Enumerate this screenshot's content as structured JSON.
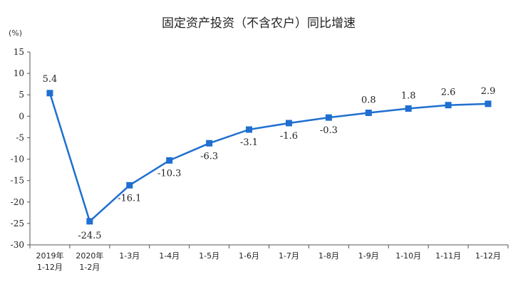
{
  "chart_data": {
    "type": "line",
    "title": "固定资产投资（不含农户）同比增速",
    "ylabel": "(%)",
    "xlabel": "",
    "ylim": [
      -30,
      15
    ],
    "yticks": [
      15,
      10,
      5,
      0,
      -5,
      -10,
      -15,
      -20,
      -25,
      -30
    ],
    "grid": false,
    "legend": "none",
    "categories": [
      [
        "2019年",
        "1-12月"
      ],
      [
        "2020年",
        "1-2月"
      ],
      [
        "1-3月"
      ],
      [
        "1-4月"
      ],
      [
        "1-5月"
      ],
      [
        "1-6月"
      ],
      [
        "1-7月"
      ],
      [
        "1-8月"
      ],
      [
        "1-9月"
      ],
      [
        "1-10月"
      ],
      [
        "1-11月"
      ],
      [
        "1-12月"
      ]
    ],
    "series": [
      {
        "values": [
          5.4,
          -24.5,
          -16.1,
          -10.3,
          -6.3,
          -3.1,
          -1.6,
          -0.3,
          0.8,
          1.8,
          2.6,
          2.9
        ],
        "labels": [
          "5.4",
          "-24.5",
          "-16.1",
          "-10.3",
          "-6.3",
          "-3.1",
          "-1.6",
          "-0.3",
          "0.8",
          "1.8",
          "2.6",
          "2.9"
        ],
        "color": "#1f6fd0"
      }
    ]
  }
}
